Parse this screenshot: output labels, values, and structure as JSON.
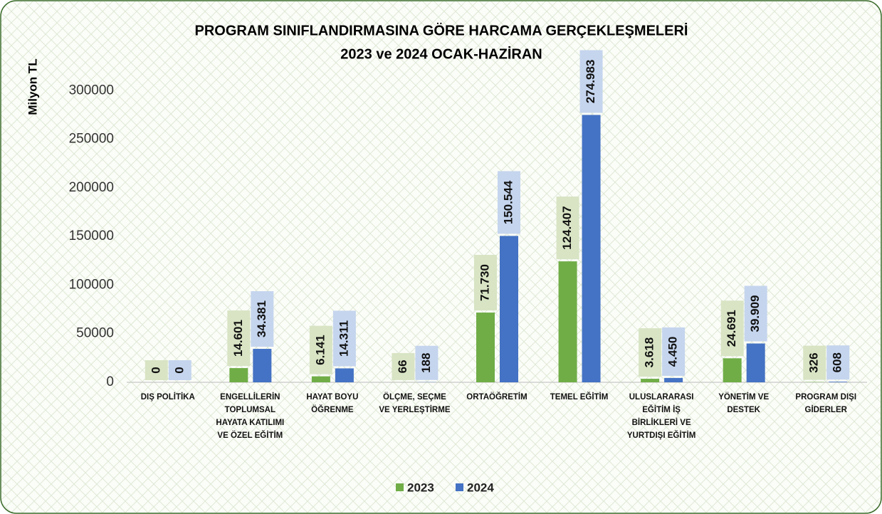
{
  "chart_data": {
    "type": "bar",
    "title": "PROGRAM SINIFLANDIRMASINA GÖRE HARCAMA GERÇEKLEŞMELERİ",
    "subtitle": "2023 ve 2024 OCAK-HAZİRAN",
    "y_label": "Milyon TL",
    "categories": [
      "DIŞ POLİTİKA",
      "ENGELLİLERİN TOPLUMSAL HAYATA KATILIMI VE ÖZEL EĞİTİM",
      "HAYAT BOYU ÖĞRENME",
      "ÖLÇME, SEÇME VE YERLEŞTİRME",
      "ORTAÖĞRETİM",
      "TEMEL EĞİTİM",
      "ULUSLARARASI EĞİTİM İŞ BİRLİKLERİ VE YURTDIŞI EĞİTİM",
      "YÖNETİM VE DESTEK",
      "PROGRAM DIŞI GİDERLER"
    ],
    "series": [
      {
        "name": "2023",
        "color": "#70ad47",
        "label_bg": "#d8e4c4",
        "values": [
          0,
          14601,
          6141,
          66,
          71730,
          124407,
          3618,
          24691,
          326
        ],
        "value_labels": [
          "0",
          "14.601",
          "6.141",
          "66",
          "71.730",
          "124.407",
          "3.618",
          "24.691",
          "326"
        ]
      },
      {
        "name": "2024",
        "color": "#4472c4",
        "label_bg": "#c5d5ee",
        "values": [
          0,
          34381,
          14311,
          188,
          150544,
          274983,
          4450,
          39909,
          608
        ],
        "value_labels": [
          "0",
          "34.381",
          "14.311",
          "188",
          "150.544",
          "274.983",
          "4.450",
          "39.909",
          "608"
        ]
      }
    ],
    "ylim": [
      0,
      350000
    ],
    "yticks": [
      0,
      50000,
      100000,
      150000,
      200000,
      250000,
      300000
    ],
    "grid": false,
    "legend": "bottom"
  }
}
